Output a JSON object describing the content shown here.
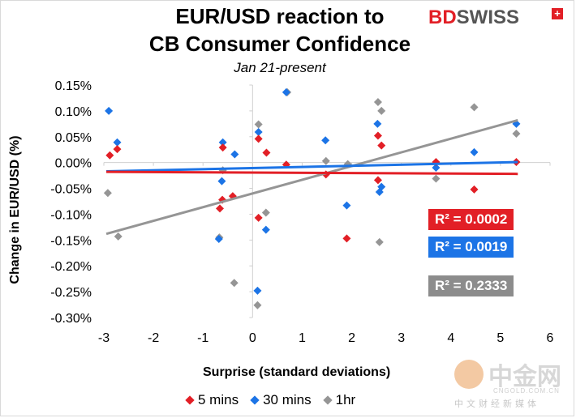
{
  "chart_data": {
    "type": "scatter",
    "title_line1": "EUR/USD reaction to",
    "title_line2": "CB Consumer Confidence",
    "subtitle": "Jan 21-present",
    "xlabel": "Surprise (standard deviations)",
    "ylabel": "Change in EUR/USD  (%)",
    "xlim": [
      -3,
      6
    ],
    "ylim": [
      -0.3,
      0.15
    ],
    "x_ticks": [
      -3,
      -2,
      -1,
      0,
      1,
      2,
      3,
      4,
      5,
      6
    ],
    "y_ticks": [
      0.15,
      0.1,
      0.05,
      0.0,
      -0.05,
      -0.1,
      -0.15,
      -0.2,
      -0.25,
      -0.3
    ],
    "y_tick_labels": [
      "0.15%",
      "0.10%",
      "0.05%",
      "0.00%",
      "-0.05%",
      "-0.10%",
      "-0.15%",
      "-0.20%",
      "-0.25%",
      "-0.30%"
    ],
    "grid": false,
    "legend_position": "bottom",
    "series": [
      {
        "name": "5 mins",
        "color": "#e21f26",
        "points": [
          [
            -2.88,
            0.014
          ],
          [
            -2.73,
            0.026
          ],
          [
            -0.6,
            0.029
          ],
          [
            -0.66,
            -0.089
          ],
          [
            -0.61,
            -0.072
          ],
          [
            -0.4,
            -0.065
          ],
          [
            0.12,
            0.046
          ],
          [
            0.12,
            -0.107
          ],
          [
            0.28,
            0.019
          ],
          [
            0.68,
            -0.004
          ],
          [
            1.48,
            -0.023
          ],
          [
            1.9,
            -0.147
          ],
          [
            2.53,
            0.052
          ],
          [
            2.53,
            -0.034
          ],
          [
            2.6,
            0.033
          ],
          [
            3.7,
            0.001
          ],
          [
            4.47,
            -0.052
          ],
          [
            5.32,
            0.001
          ]
        ],
        "trend": [
          [
            -2.95,
            -0.018
          ],
          [
            5.35,
            -0.022
          ]
        ],
        "r2": "R² = 0.0002"
      },
      {
        "name": "30 mins",
        "color": "#1c74e6",
        "points": [
          [
            -2.9,
            0.1
          ],
          [
            -2.73,
            0.039
          ],
          [
            -0.6,
            0.039
          ],
          [
            -0.62,
            -0.036
          ],
          [
            -0.68,
            -0.148
          ],
          [
            -0.36,
            0.016
          ],
          [
            0.12,
            0.059
          ],
          [
            0.1,
            -0.248
          ],
          [
            0.27,
            -0.13
          ],
          [
            0.68,
            0.136
          ],
          [
            1.47,
            0.043
          ],
          [
            1.9,
            -0.083
          ],
          [
            2.52,
            0.075
          ],
          [
            2.56,
            -0.057
          ],
          [
            2.6,
            -0.047
          ],
          [
            3.7,
            -0.01
          ],
          [
            4.47,
            0.02
          ],
          [
            5.32,
            0.075
          ]
        ],
        "trend": [
          [
            -2.95,
            -0.017
          ],
          [
            5.35,
            0.001
          ]
        ],
        "r2": "R² = 0.0019"
      },
      {
        "name": "1hr",
        "color": "#959595",
        "points": [
          [
            -2.92,
            -0.059
          ],
          [
            -2.71,
            -0.143
          ],
          [
            -0.6,
            -0.015
          ],
          [
            -0.67,
            -0.145
          ],
          [
            -0.37,
            -0.233
          ],
          [
            0.12,
            0.074
          ],
          [
            0.1,
            -0.276
          ],
          [
            0.27,
            -0.097
          ],
          [
            0.7,
            0.136
          ],
          [
            1.48,
            0.003
          ],
          [
            1.92,
            -0.003
          ],
          [
            2.53,
            0.117
          ],
          [
            2.6,
            0.1
          ],
          [
            2.56,
            -0.154
          ],
          [
            3.7,
            -0.031
          ],
          [
            4.47,
            0.107
          ],
          [
            5.32,
            0.056
          ]
        ],
        "trend": [
          [
            -2.95,
            -0.138
          ],
          [
            5.35,
            0.082
          ]
        ],
        "r2": "R² = 0.2333"
      }
    ]
  },
  "logo": {
    "part1": "BD",
    "part2": "SWISS",
    "plus": "+"
  },
  "watermark": {
    "cn": "中金网",
    "en": "CNGOLD.COM.CN",
    "sub": "中文财经新媒体"
  }
}
